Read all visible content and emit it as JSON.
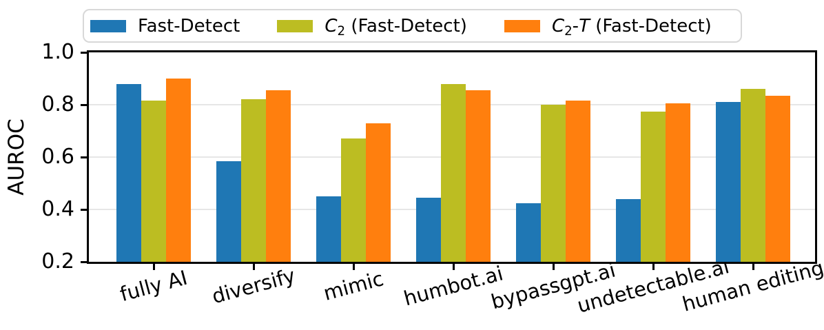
{
  "figure": {
    "background": "#ffffff"
  },
  "legend": {
    "border_color": "#d8d8d8",
    "items": [
      {
        "name": "fast-detect",
        "color": "#1f77b4",
        "parts": [
          {
            "style": "normal",
            "text": "Fast-Detect"
          }
        ]
      },
      {
        "name": "c2-fast-detect",
        "color": "#bcbd22",
        "parts": [
          {
            "style": "italic",
            "text": "C"
          },
          {
            "style": "sub",
            "text": "2"
          },
          {
            "style": "normal",
            "text": " (Fast-Detect)"
          }
        ]
      },
      {
        "name": "c2-t-fast-detect",
        "color": "#ff7f0e",
        "parts": [
          {
            "style": "italic",
            "text": "C"
          },
          {
            "style": "sub",
            "text": "2"
          },
          {
            "style": "normal",
            "text": "-"
          },
          {
            "style": "italic",
            "text": "T"
          },
          {
            "style": "normal",
            "text": " (Fast-Detect)"
          }
        ]
      }
    ]
  },
  "chart_data": {
    "type": "bar",
    "title": "",
    "xlabel": "",
    "ylabel": "AUROC",
    "ylim": [
      0.2,
      1.0
    ],
    "yticks": [
      1.0,
      0.8,
      0.6,
      0.4,
      0.2
    ],
    "ytick_labels": [
      "1.0",
      "0.8",
      "0.6",
      "0.4",
      "0.2"
    ],
    "grid": true,
    "grid_color": "#e6e6e6",
    "legend_position": "top",
    "xtick_rotation_deg": 15,
    "categories": [
      "fully AI",
      "diversify",
      "mimic",
      "humbot.ai",
      "bypassgpt.ai",
      "undetectable.ai",
      "human editing"
    ],
    "series": [
      {
        "name": "Fast-Detect",
        "color": "#1f77b4",
        "values": [
          0.88,
          0.585,
          0.45,
          0.445,
          0.425,
          0.44,
          0.81
        ]
      },
      {
        "name": "C₂ (Fast-Detect)",
        "color": "#bcbd22",
        "values": [
          0.815,
          0.82,
          0.67,
          0.88,
          0.8,
          0.775,
          0.86
        ]
      },
      {
        "name": "C₂-T (Fast-Detect)",
        "color": "#ff7f0e",
        "values": [
          0.9,
          0.855,
          0.73,
          0.855,
          0.815,
          0.805,
          0.835
        ]
      }
    ]
  }
}
